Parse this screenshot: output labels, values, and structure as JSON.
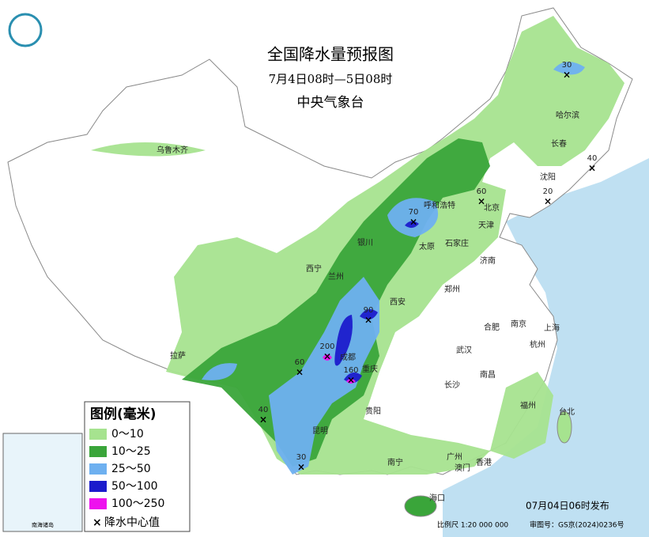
{
  "header": {
    "title": "全国降水量预报图",
    "period": "7月4日08时—5日08时",
    "agency": "中央气象台"
  },
  "legend": {
    "title": "图例(毫米)",
    "items": [
      {
        "label": "0～10",
        "color": "#a6e38f"
      },
      {
        "label": "10～25",
        "color": "#3aa53a"
      },
      {
        "label": "25～50",
        "color": "#6eb0f0"
      },
      {
        "label": "50～100",
        "color": "#1c1ccc"
      },
      {
        "label": "100～250",
        "color": "#ee12ee"
      }
    ],
    "center_marker": "降水中心值"
  },
  "cities": [
    "乌鲁木齐",
    "拉萨",
    "西宁",
    "兰州",
    "银川",
    "呼和浩特",
    "北京",
    "天津",
    "石家庄",
    "太原",
    "济南",
    "郑州",
    "西安",
    "成都",
    "重庆",
    "贵阳",
    "昆明",
    "南宁",
    "广州",
    "澳门",
    "香港",
    "海口",
    "长沙",
    "南昌",
    "武汉",
    "合肥",
    "南京",
    "上海",
    "杭州",
    "福州",
    "台北",
    "沈阳",
    "长春",
    "哈尔滨"
  ],
  "centers": [
    30,
    40,
    20,
    60,
    70,
    90,
    200,
    160,
    60,
    40,
    30
  ],
  "inset": {
    "label": "南海诸岛"
  },
  "footer": {
    "issued": "07月04日06时发布",
    "scale": "比例尺 1:20 000 000",
    "review": "审图号：GS京(2024)0236号"
  }
}
